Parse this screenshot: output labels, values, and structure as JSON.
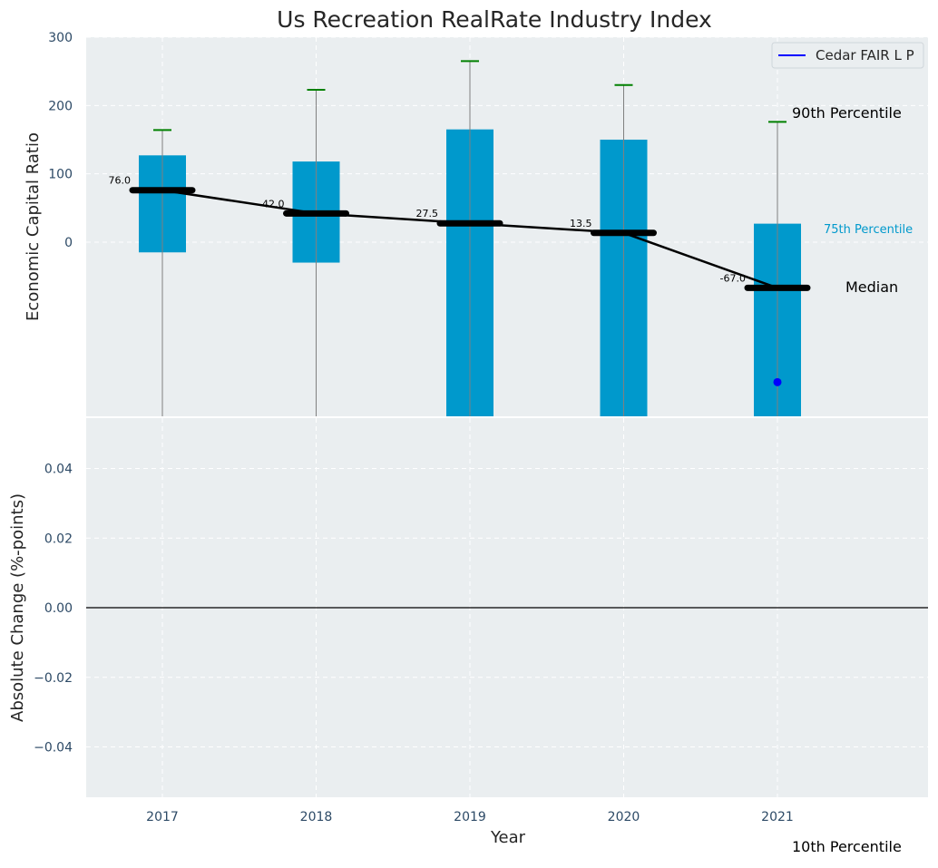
{
  "chart_data": [
    {
      "type": "bar",
      "title": "Us Recreation RealRate Industry Index",
      "xlabel": "",
      "ylabel": "Economic Capital Ratio",
      "categories": [
        "2017",
        "2018",
        "2019",
        "2020",
        "2021"
      ],
      "ylim": [
        -255,
        300
      ],
      "yticks": [
        0,
        100,
        200,
        300
      ],
      "grid": true,
      "series": [
        {
          "role": "interquartile-box",
          "color": "#0099cc",
          "p25": [
            -15,
            -30,
            -255,
            -255,
            -255
          ],
          "p75": [
            127,
            118,
            165,
            150,
            27
          ]
        },
        {
          "role": "whisker",
          "color": "#808080",
          "p10": [
            -255,
            -255,
            -255,
            -255,
            -255
          ],
          "p90": [
            164,
            223,
            265,
            230,
            176
          ],
          "cap_color": "#008000"
        },
        {
          "role": "median",
          "color": "#000000",
          "values": [
            76.0,
            42.0,
            27.5,
            13.5,
            -67.0
          ],
          "labels": [
            "76.0",
            "42.0",
            "27.5",
            "13.5",
            "-67.0"
          ]
        },
        {
          "name": "Cedar FAIR L P",
          "role": "company",
          "color": "#0000ff",
          "points": [
            {
              "x": "2021",
              "y": -205
            }
          ]
        }
      ],
      "annotations": {
        "p90": "90th Percentile",
        "p75": "75th Percentile",
        "median": "Median",
        "p10": "10th Percentile"
      },
      "legend": {
        "placement": "top-right",
        "entries": [
          "Cedar FAIR L P"
        ]
      }
    },
    {
      "type": "line",
      "xlabel": "Year",
      "ylabel": "Absolute Change (%-points)",
      "categories": [
        "2017",
        "2018",
        "2019",
        "2020",
        "2021"
      ],
      "ylim": [
        -0.055,
        0.055
      ],
      "yticks": [
        "−0.04",
        "−0.02",
        "0.00",
        "0.02",
        "0.04"
      ],
      "ytick_values": [
        -0.04,
        -0.02,
        0.0,
        0.02,
        0.04
      ],
      "reference_line": 0,
      "grid": true,
      "series": []
    }
  ],
  "colors": {
    "panel_bg": "#eaeef0",
    "grid": "#ffffff",
    "tick_text": "#2d4a66",
    "bar": "#0099cc",
    "whisker": "#808080",
    "cap": "#008000",
    "median": "#000000",
    "company": "#0000ff",
    "p75_text": "#0099cc"
  }
}
